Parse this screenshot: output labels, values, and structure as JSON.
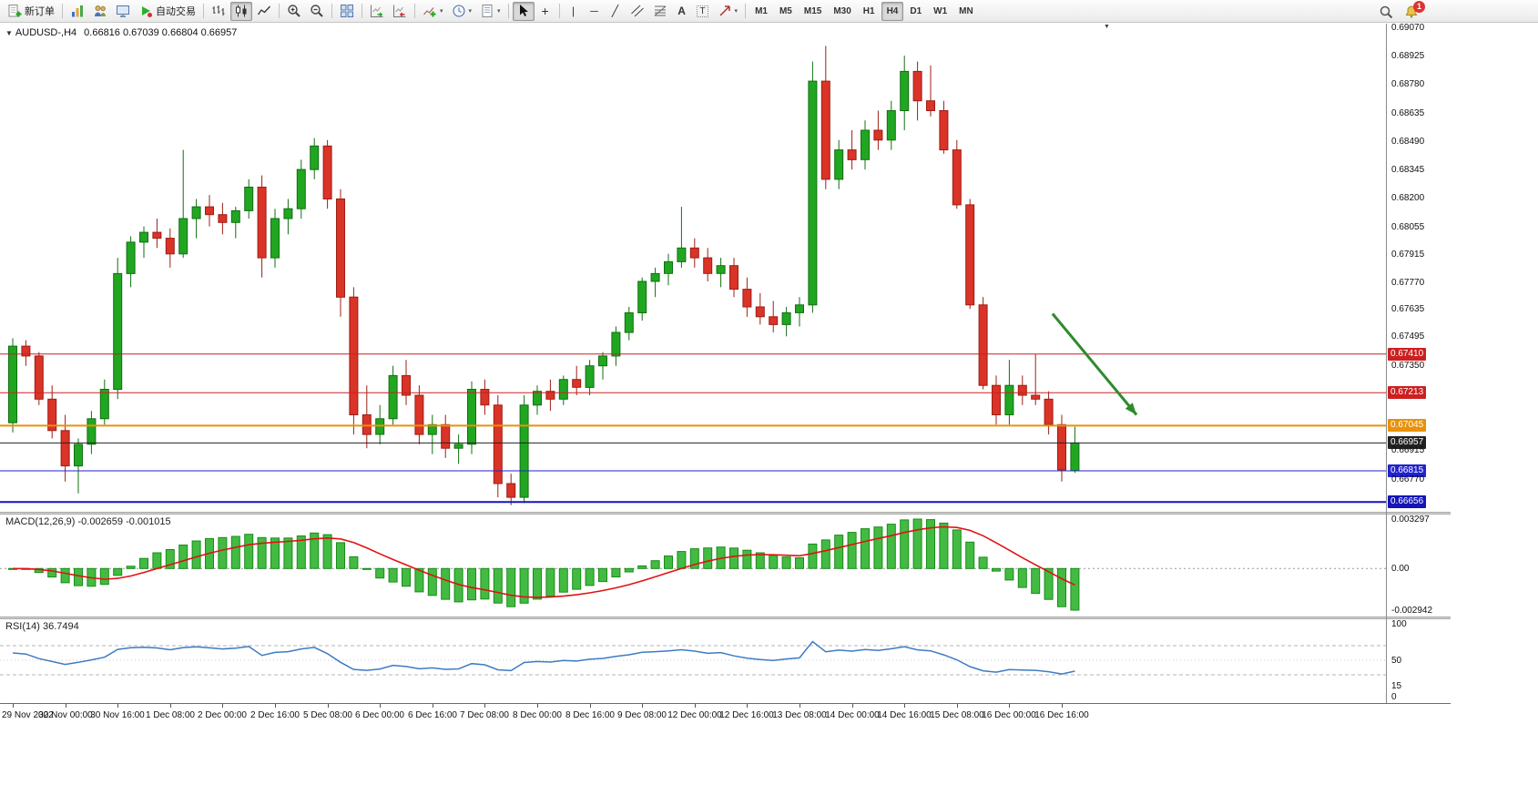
{
  "toolbar": {
    "new_order_label": "新订单",
    "autotrading_label": "自动交易",
    "timeframes": [
      "M1",
      "M5",
      "M15",
      "M30",
      "H1",
      "H4",
      "D1",
      "W1",
      "MN"
    ],
    "active_timeframe": "H4",
    "notification_badge": "1",
    "glyphs": {
      "caret": "▾",
      "oneclick": "▼",
      "shift_marker": "▼",
      "crosshair": "+",
      "vline": "|",
      "hline": "─",
      "trendline": "╱",
      "text_tool": "A",
      "label_tool": "T"
    }
  },
  "chart": {
    "title_symbol": "AUDUSD-,H4",
    "title_ohlc": "0.66816 0.67039 0.66804 0.66957"
  },
  "chart_data": {
    "type": "candlestick",
    "symbol": "AUDUSD-",
    "timeframe": "H4",
    "current_bar": {
      "open": 0.66816,
      "high": 0.67039,
      "low": 0.66804,
      "close": 0.66957
    },
    "price_axis": {
      "max": 0.69093,
      "min": 0.66606,
      "labels": [
        "0.69070",
        "0.68925",
        "0.68780",
        "0.68635",
        "0.68490",
        "0.68345",
        "0.68200",
        "0.68055",
        "0.67915",
        "0.67770",
        "0.67635",
        "0.67495",
        "0.67350",
        "0.66915",
        "0.66770"
      ]
    },
    "horizontal_lines": [
      {
        "price": 0.6741,
        "label": "0.67410",
        "color": "#cc2020",
        "width": 1
      },
      {
        "price": 0.67213,
        "label": "0.67213",
        "color": "#cc2020",
        "width": 1
      },
      {
        "price": 0.67045,
        "label": "0.67045",
        "color": "#e8920a",
        "width": 2
      },
      {
        "price": 0.66957,
        "label": "0.66957",
        "color": "#222222",
        "width": 1
      },
      {
        "price": 0.66815,
        "label": "0.66815",
        "color": "#2323cc",
        "width": 1
      },
      {
        "price": 0.66656,
        "label": "0.66656",
        "color": "#1414b8",
        "width": 2
      }
    ],
    "x_labels": [
      {
        "bar": 0,
        "text": "29 Nov 2022"
      },
      {
        "bar": 4,
        "text": "30 Nov 00:00"
      },
      {
        "bar": 8,
        "text": "30 Nov 16:00"
      },
      {
        "bar": 12,
        "text": "1 Dec 08:00"
      },
      {
        "bar": 16,
        "text": "2 Dec 00:00"
      },
      {
        "bar": 20,
        "text": "2 Dec 16:00"
      },
      {
        "bar": 24,
        "text": "5 Dec 08:00"
      },
      {
        "bar": 28,
        "text": "6 Dec 00:00"
      },
      {
        "bar": 32,
        "text": "6 Dec 16:00"
      },
      {
        "bar": 36,
        "text": "7 Dec 08:00"
      },
      {
        "bar": 40,
        "text": "8 Dec 00:00"
      },
      {
        "bar": 44,
        "text": "8 Dec 16:00"
      },
      {
        "bar": 48,
        "text": "9 Dec 08:00"
      },
      {
        "bar": 52,
        "text": "12 Dec 00:00"
      },
      {
        "bar": 56,
        "text": "12 Dec 16:00"
      },
      {
        "bar": 60,
        "text": "13 Dec 08:00"
      },
      {
        "bar": 64,
        "text": "14 Dec 00:00"
      },
      {
        "bar": 68,
        "text": "14 Dec 16:00"
      },
      {
        "bar": 72,
        "text": "15 Dec 08:00"
      },
      {
        "bar": 76,
        "text": "16 Dec 00:00"
      },
      {
        "bar": 80,
        "text": "16 Dec 16:00"
      }
    ],
    "candles": [
      [
        0.6706,
        0.6749,
        0.6701,
        0.6745
      ],
      [
        0.6745,
        0.6748,
        0.6735,
        0.674
      ],
      [
        0.674,
        0.6742,
        0.6715,
        0.6718
      ],
      [
        0.6718,
        0.6725,
        0.6698,
        0.6702
      ],
      [
        0.6702,
        0.671,
        0.6676,
        0.6684
      ],
      [
        0.6684,
        0.6698,
        0.667,
        0.6695
      ],
      [
        0.6695,
        0.6712,
        0.669,
        0.6708
      ],
      [
        0.6708,
        0.6728,
        0.6705,
        0.6723
      ],
      [
        0.6723,
        0.679,
        0.6718,
        0.6782
      ],
      [
        0.6782,
        0.6801,
        0.6775,
        0.6798
      ],
      [
        0.6798,
        0.6806,
        0.679,
        0.6803
      ],
      [
        0.6803,
        0.681,
        0.6795,
        0.68
      ],
      [
        0.68,
        0.6805,
        0.6785,
        0.6792
      ],
      [
        0.6792,
        0.6845,
        0.679,
        0.681
      ],
      [
        0.681,
        0.682,
        0.68,
        0.6816
      ],
      [
        0.6816,
        0.6822,
        0.6806,
        0.6812
      ],
      [
        0.6812,
        0.6818,
        0.6802,
        0.6808
      ],
      [
        0.6808,
        0.6816,
        0.68,
        0.6814
      ],
      [
        0.6814,
        0.683,
        0.681,
        0.6826
      ],
      [
        0.6826,
        0.6832,
        0.678,
        0.679
      ],
      [
        0.679,
        0.6815,
        0.6785,
        0.681
      ],
      [
        0.681,
        0.682,
        0.6802,
        0.6815
      ],
      [
        0.6815,
        0.684,
        0.681,
        0.6835
      ],
      [
        0.6835,
        0.6851,
        0.683,
        0.6847
      ],
      [
        0.6847,
        0.685,
        0.6815,
        0.682
      ],
      [
        0.682,
        0.6825,
        0.676,
        0.677
      ],
      [
        0.677,
        0.6775,
        0.67,
        0.671
      ],
      [
        0.671,
        0.6725,
        0.6693,
        0.67
      ],
      [
        0.67,
        0.6715,
        0.6695,
        0.6708
      ],
      [
        0.6708,
        0.6735,
        0.6705,
        0.673
      ],
      [
        0.673,
        0.6738,
        0.6715,
        0.672
      ],
      [
        0.672,
        0.6725,
        0.6695,
        0.67
      ],
      [
        0.67,
        0.671,
        0.669,
        0.6705
      ],
      [
        0.6705,
        0.671,
        0.6688,
        0.6693
      ],
      [
        0.6693,
        0.67,
        0.6685,
        0.6695
      ],
      [
        0.6695,
        0.6727,
        0.669,
        0.6723
      ],
      [
        0.6723,
        0.6728,
        0.671,
        0.6715
      ],
      [
        0.6715,
        0.672,
        0.6668,
        0.6675
      ],
      [
        0.6675,
        0.668,
        0.6664,
        0.6668
      ],
      [
        0.6668,
        0.672,
        0.6665,
        0.6715
      ],
      [
        0.6715,
        0.6725,
        0.671,
        0.6722
      ],
      [
        0.6722,
        0.6728,
        0.6712,
        0.6718
      ],
      [
        0.6718,
        0.673,
        0.6715,
        0.6728
      ],
      [
        0.6728,
        0.6735,
        0.672,
        0.6724
      ],
      [
        0.6724,
        0.6738,
        0.672,
        0.6735
      ],
      [
        0.6735,
        0.6742,
        0.6728,
        0.674
      ],
      [
        0.674,
        0.6755,
        0.6735,
        0.6752
      ],
      [
        0.6752,
        0.6765,
        0.6748,
        0.6762
      ],
      [
        0.6762,
        0.678,
        0.6758,
        0.6778
      ],
      [
        0.6778,
        0.6785,
        0.677,
        0.6782
      ],
      [
        0.6782,
        0.6792,
        0.6776,
        0.6788
      ],
      [
        0.6788,
        0.6816,
        0.6785,
        0.6795
      ],
      [
        0.6795,
        0.68,
        0.6785,
        0.679
      ],
      [
        0.679,
        0.6795,
        0.6778,
        0.6782
      ],
      [
        0.6782,
        0.679,
        0.6775,
        0.6786
      ],
      [
        0.6786,
        0.679,
        0.677,
        0.6774
      ],
      [
        0.6774,
        0.678,
        0.676,
        0.6765
      ],
      [
        0.6765,
        0.6772,
        0.6756,
        0.676
      ],
      [
        0.676,
        0.6768,
        0.6752,
        0.6756
      ],
      [
        0.6756,
        0.6765,
        0.675,
        0.6762
      ],
      [
        0.6762,
        0.677,
        0.6755,
        0.6766
      ],
      [
        0.6766,
        0.689,
        0.6762,
        0.688
      ],
      [
        0.688,
        0.6898,
        0.6825,
        0.683
      ],
      [
        0.683,
        0.685,
        0.6825,
        0.6845
      ],
      [
        0.6845,
        0.6855,
        0.6835,
        0.684
      ],
      [
        0.684,
        0.686,
        0.6835,
        0.6855
      ],
      [
        0.6855,
        0.6865,
        0.6845,
        0.685
      ],
      [
        0.685,
        0.687,
        0.6845,
        0.6865
      ],
      [
        0.6865,
        0.6893,
        0.6855,
        0.6885
      ],
      [
        0.6885,
        0.689,
        0.686,
        0.687
      ],
      [
        0.687,
        0.6888,
        0.6862,
        0.6865
      ],
      [
        0.6865,
        0.687,
        0.6843,
        0.6845
      ],
      [
        0.6845,
        0.685,
        0.6815,
        0.6817
      ],
      [
        0.6817,
        0.682,
        0.6764,
        0.6766
      ],
      [
        0.6766,
        0.677,
        0.6723,
        0.6725
      ],
      [
        0.6725,
        0.673,
        0.6705,
        0.671
      ],
      [
        0.671,
        0.6738,
        0.6705,
        0.6725
      ],
      [
        0.6725,
        0.673,
        0.6715,
        0.672
      ],
      [
        0.672,
        0.6741,
        0.6715,
        0.6718
      ],
      [
        0.6718,
        0.6722,
        0.67,
        0.6705
      ],
      [
        0.6705,
        0.671,
        0.6676,
        0.6682
      ],
      [
        0.66816,
        0.67039,
        0.66804,
        0.66957
      ]
    ],
    "annotations": [
      {
        "type": "arrow",
        "from_bar": 79.3,
        "from_price": 0.67615,
        "to_bar": 85.7,
        "to_price": 0.671,
        "color": "#2e8b2e"
      }
    ],
    "indicators": {
      "macd": {
        "name": "MACD(12,26,9)",
        "current_values": "-0.002659 -0.001015",
        "fast": 12,
        "slow": 26,
        "signal": 9,
        "axis": {
          "max": 0.003297,
          "min": -0.002942,
          "labels": [
            "0.003297",
            "0.00",
            "-0.002942"
          ]
        }
      },
      "rsi": {
        "name": "RSI(14)",
        "current_value": "36.7494",
        "period": 14,
        "levels": [
          70,
          30
        ],
        "axis_labels": [
          "100",
          "50",
          "15",
          "0"
        ]
      }
    },
    "colors": {
      "up_candle": "#21a621",
      "down_candle": "#da3327",
      "macd_histogram": "#43bb43",
      "macd_signal": "#e01212",
      "rsi_line": "#3d7bc4"
    }
  }
}
